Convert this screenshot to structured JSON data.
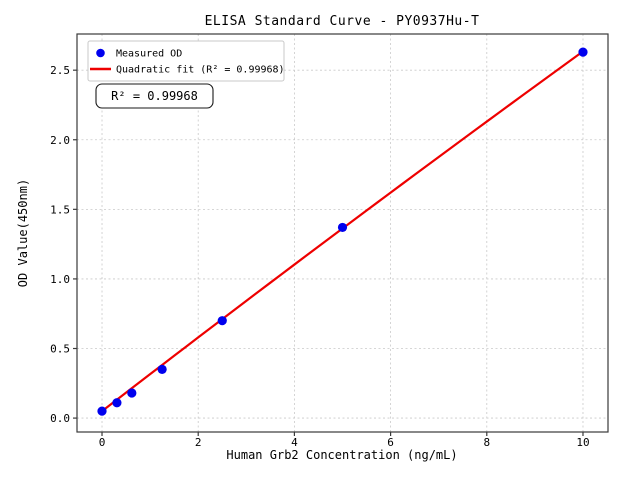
{
  "figure": {
    "title": "ELISA Standard Curve - PY0937Hu-T"
  },
  "chart_data": {
    "type": "scatter",
    "title": "ELISA Standard Curve - PY0937Hu-T",
    "xlabel": "Human Grb2 Concentration (ng/mL)",
    "ylabel": "OD Value(450nm)",
    "xlim": [
      -0.52,
      10.52
    ],
    "ylim": [
      -0.1,
      2.76
    ],
    "xticks": {
      "values": [
        0,
        2,
        4,
        6,
        8,
        10
      ],
      "labels": [
        "0",
        "2",
        "4",
        "6",
        "8",
        "10"
      ]
    },
    "yticks": {
      "values": [
        0,
        0.5,
        1,
        1.5,
        2,
        2.5
      ],
      "labels": [
        "0.0",
        "0.5",
        "1.0",
        "1.5",
        "2.0",
        "2.5"
      ]
    },
    "grid": true,
    "legend": {
      "position": "upper-left",
      "entries": [
        {
          "label": "Measured OD",
          "marker": "circle",
          "color": "#0000ee"
        },
        {
          "label": "Quadratic fit (R² = 0.99968)",
          "marker": "line",
          "color": "#ee0000"
        }
      ]
    },
    "annotation": "R² = 0.99968",
    "r_squared": 0.99968,
    "series": [
      {
        "name": "Measured OD",
        "type": "scatter",
        "color": "#0000ee",
        "x": [
          0,
          0.31,
          0.62,
          1.25,
          2.5,
          5,
          10
        ],
        "y": [
          0.05,
          0.11,
          0.18,
          0.35,
          0.7,
          1.37,
          2.63
        ]
      },
      {
        "name": "Quadratic fit",
        "type": "line",
        "color": "#ee0000",
        "fit": "quadratic",
        "coeffs": {
          "a": -0.0008,
          "b": 0.2665,
          "c": 0.05
        },
        "x_range": [
          0,
          10
        ]
      }
    ],
    "colors": {
      "grid": "#c9c9c9",
      "frame": "#3a3a3a",
      "background": "#ffffff",
      "text": "#000000"
    }
  }
}
